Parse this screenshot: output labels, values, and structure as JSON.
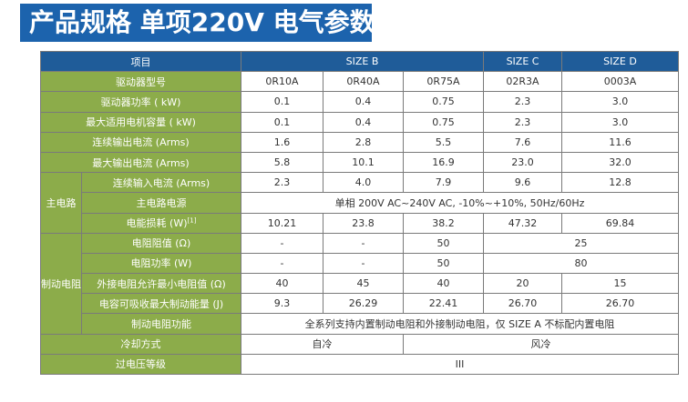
{
  "title": "产品规格 单项220V 电气参数",
  "header": {
    "item": "项目",
    "size_b": "SIZE B",
    "size_c": "SIZE C",
    "size_d": "SIZE D"
  },
  "rows": {
    "model": {
      "label": "驱动器型号",
      "values": [
        "0R10A",
        "0R40A",
        "0R75A",
        "02R3A",
        "0003A"
      ]
    },
    "power": {
      "label": "驱动器功率 ( kW)",
      "values": [
        "0.1",
        "0.4",
        "0.75",
        "2.3",
        "3.0"
      ]
    },
    "motor": {
      "label": "最大适用电机容量 ( kW)",
      "values": [
        "0.1",
        "0.4",
        "0.75",
        "2.3",
        "3.0"
      ]
    },
    "cont_out": {
      "label": "连续输出电流 (Arms)",
      "values": [
        "1.6",
        "2.8",
        "5.5",
        "7.6",
        "11.6"
      ]
    },
    "max_out": {
      "label": "最大输出电流 (Arms)",
      "values": [
        "5.8",
        "10.1",
        "16.9",
        "23.0",
        "32.0"
      ]
    }
  },
  "main_circuit": {
    "group": "主电路",
    "cont_in": {
      "label": "连续输入电流 (Arms)",
      "values": [
        "2.3",
        "4.0",
        "7.9",
        "9.6",
        "12.8"
      ]
    },
    "supply": {
      "label": "主电路电源",
      "value": "单相 200V AC~240V AC, -10%~+10%, 50Hz/60Hz"
    },
    "loss": {
      "label": "电能损耗 (W)",
      "note": "[1]",
      "values": [
        "10.21",
        "23.8",
        "38.2",
        "47.32",
        "69.84"
      ]
    }
  },
  "braking": {
    "group": "制动电阻",
    "resistance": {
      "label": "电阻阻值 (Ω)",
      "values": [
        "-",
        "-",
        "50"
      ],
      "span_value": "25"
    },
    "res_power": {
      "label": "电阻功率 (W)",
      "values": [
        "-",
        "-",
        "50"
      ],
      "span_value": "80"
    },
    "min_ext": {
      "label": "外接电阻允许最小电阻值 (Ω)",
      "values": [
        "40",
        "45",
        "40",
        "20",
        "15"
      ]
    },
    "cap_energy": {
      "label": "电容可吸收最大制动能量 (J)",
      "values": [
        "9.3",
        "26.29",
        "22.41",
        "26.70",
        "26.70"
      ]
    },
    "function": {
      "label": "制动电阻功能",
      "value": "全系列支持内置制动电阻和外接制动电阻，仅 SIZE A 不标配内置电阻"
    }
  },
  "cooling": {
    "label": "冷却方式",
    "natural": "自冷",
    "fan": "风冷"
  },
  "overvoltage": {
    "label": "过电压等级",
    "value": "III"
  },
  "colors": {
    "banner": "#1c63ad",
    "header": "#1f5c99",
    "label_bg": "#8cac4a"
  }
}
